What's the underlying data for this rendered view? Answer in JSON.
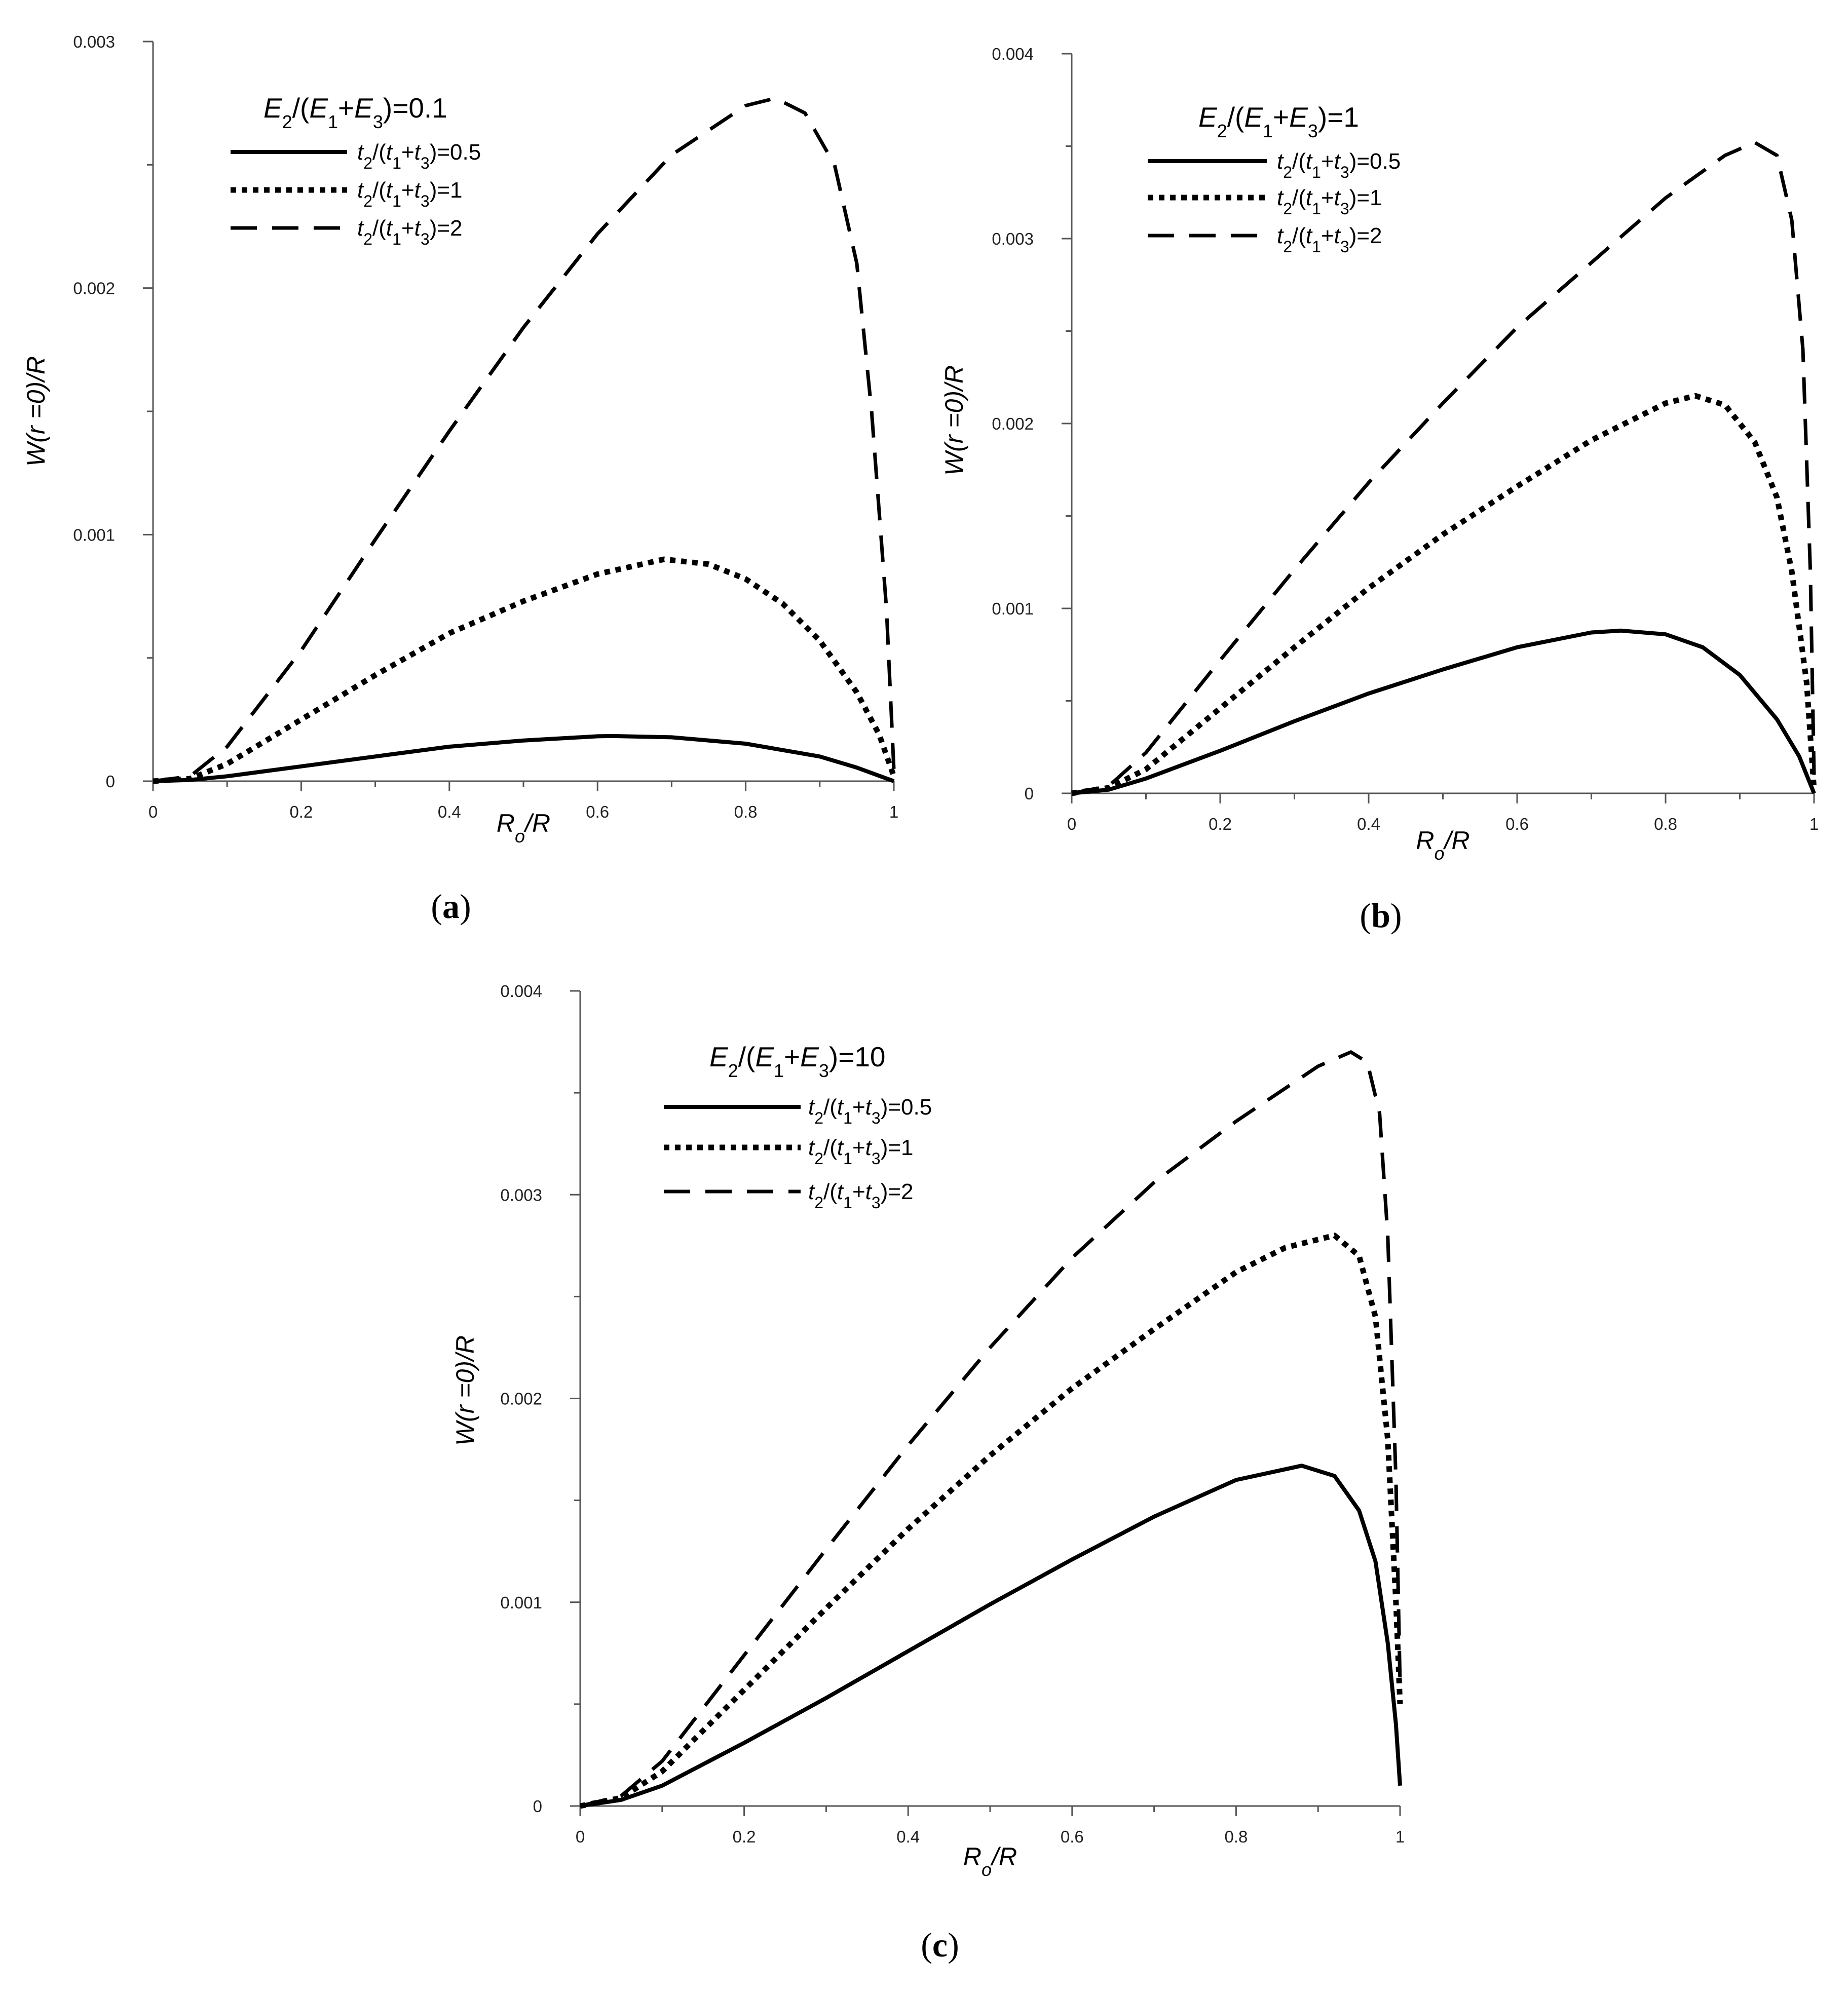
{
  "chart_data": [
    {
      "type": "line",
      "panel_label": "(a)",
      "legend_title": "E2/(E1+E3)=0.1",
      "legend_title_parts": {
        "pre": "E",
        "sub1": "2",
        "mid1": "/(E",
        "sub2": "1",
        "mid2": "+E",
        "sub3": "3",
        "post": ")=0.1"
      },
      "xlabel": "Ro/R",
      "ylabel": "W(r =0)/R",
      "xlim": [
        0,
        1
      ],
      "ylim": [
        0,
        0.003
      ],
      "xticks": [
        "0",
        "0.2",
        "0.4",
        "0.6",
        "0.8",
        "1"
      ],
      "yticks": [
        "0",
        "0.001",
        "0.002",
        "0.003"
      ],
      "series": [
        {
          "name": "t2/(t1+t3)=0.5",
          "label_value": "0.5",
          "style": "solid",
          "x": [
            0,
            0.05,
            0.1,
            0.2,
            0.3,
            0.4,
            0.5,
            0.6,
            0.62,
            0.7,
            0.8,
            0.9,
            0.95,
            1.0
          ],
          "y": [
            0,
            5e-06,
            2e-05,
            6e-05,
            0.0001,
            0.00014,
            0.000165,
            0.000182,
            0.000183,
            0.000178,
            0.000152,
            0.0001,
            5.5e-05,
            0
          ]
        },
        {
          "name": "t2/(t1+t3)=1",
          "label_value": "1",
          "style": "dotted",
          "x": [
            0,
            0.05,
            0.1,
            0.2,
            0.3,
            0.4,
            0.5,
            0.6,
            0.69,
            0.75,
            0.8,
            0.85,
            0.9,
            0.95,
            0.98,
            1.0
          ],
          "y": [
            0,
            1e-05,
            7e-05,
            0.00025,
            0.00043,
            0.0006,
            0.00073,
            0.00084,
            0.0009,
            0.00088,
            0.00082,
            0.00072,
            0.00057,
            0.00036,
            0.00019,
            2e-05
          ]
        },
        {
          "name": "t2/(t1+t3)=2",
          "label_value": "2",
          "style": "dashed",
          "x": [
            0,
            0.05,
            0.1,
            0.2,
            0.3,
            0.4,
            0.5,
            0.6,
            0.7,
            0.8,
            0.84,
            0.88,
            0.92,
            0.95,
            0.97,
            0.99,
            1.0
          ],
          "y": [
            0,
            2e-05,
            0.00014,
            0.00053,
            0.00098,
            0.00142,
            0.00184,
            0.00222,
            0.00254,
            0.00274,
            0.00277,
            0.00271,
            0.0025,
            0.0021,
            0.0015,
            0.0007,
            5e-05
          ]
        }
      ]
    },
    {
      "type": "line",
      "panel_label": "(b)",
      "legend_title": "E2/(E1+E3)=1",
      "legend_title_parts": {
        "pre": "E",
        "sub1": "2",
        "mid1": "/(E",
        "sub2": "1",
        "mid2": "+E",
        "sub3": "3",
        "post": ")=1"
      },
      "xlabel": "Ro/R",
      "ylabel": "W(r =0)/R",
      "xlim": [
        0,
        1
      ],
      "ylim": [
        0,
        0.004
      ],
      "xticks": [
        "0",
        "0.2",
        "0.4",
        "0.6",
        "0.8",
        "1"
      ],
      "yticks": [
        "0",
        "0.001",
        "0.002",
        "0.003",
        "0.004"
      ],
      "series": [
        {
          "name": "t2/(t1+t3)=0.5",
          "label_value": "0.5",
          "style": "solid",
          "x": [
            0,
            0.05,
            0.1,
            0.2,
            0.3,
            0.4,
            0.5,
            0.6,
            0.7,
            0.74,
            0.8,
            0.85,
            0.9,
            0.95,
            0.98,
            1.0
          ],
          "y": [
            0,
            2e-05,
            8e-05,
            0.00023,
            0.00039,
            0.00054,
            0.00067,
            0.00079,
            0.00087,
            0.00088,
            0.00086,
            0.00079,
            0.00064,
            0.0004,
            0.0002,
            0
          ]
        },
        {
          "name": "t2/(t1+t3)=1",
          "label_value": "1",
          "style": "dotted",
          "x": [
            0,
            0.05,
            0.1,
            0.2,
            0.3,
            0.4,
            0.5,
            0.6,
            0.7,
            0.8,
            0.84,
            0.88,
            0.92,
            0.95,
            0.97,
            0.99,
            1.0
          ],
          "y": [
            0,
            3e-05,
            0.00013,
            0.00046,
            0.00079,
            0.00111,
            0.0014,
            0.00166,
            0.00191,
            0.00211,
            0.00215,
            0.0021,
            0.0019,
            0.0016,
            0.0012,
            0.0006,
            2e-05
          ]
        },
        {
          "name": "t2/(t1+t3)=2",
          "label_value": "2",
          "style": "dashed",
          "x": [
            0,
            0.05,
            0.1,
            0.2,
            0.3,
            0.4,
            0.5,
            0.6,
            0.7,
            0.8,
            0.88,
            0.92,
            0.95,
            0.97,
            0.985,
            0.995,
            1.0
          ],
          "y": [
            0,
            4e-05,
            0.00022,
            0.00072,
            0.00121,
            0.00168,
            0.00211,
            0.00252,
            0.00287,
            0.00322,
            0.00345,
            0.00352,
            0.00345,
            0.0031,
            0.0024,
            0.0012,
            0.0001
          ]
        }
      ]
    },
    {
      "type": "line",
      "panel_label": "(c)",
      "legend_title": "E2/(E1+E3)=10",
      "legend_title_parts": {
        "pre": "E",
        "sub1": "2",
        "mid1": "/(E",
        "sub2": "1",
        "mid2": "+E",
        "sub3": "3",
        "post": ")=10"
      },
      "xlabel": "Ro/R",
      "ylabel": "W(r =0)/R",
      "xlim": [
        0,
        1
      ],
      "ylim": [
        0,
        0.004
      ],
      "xticks": [
        "0",
        "0.2",
        "0.4",
        "0.6",
        "0.8",
        "1"
      ],
      "yticks": [
        "0",
        "0.001",
        "0.002",
        "0.003",
        "0.004"
      ],
      "series": [
        {
          "name": "t2/(t1+t3)=0.5",
          "label_value": "0.5",
          "style": "solid",
          "x": [
            0,
            0.05,
            0.1,
            0.2,
            0.3,
            0.4,
            0.5,
            0.6,
            0.7,
            0.8,
            0.88,
            0.92,
            0.95,
            0.97,
            0.985,
            0.995,
            1.0
          ],
          "y": [
            0,
            3e-05,
            0.0001,
            0.00031,
            0.00053,
            0.00076,
            0.00099,
            0.00121,
            0.00142,
            0.0016,
            0.00167,
            0.00162,
            0.00145,
            0.0012,
            0.0008,
            0.0004,
            0.0001
          ]
        },
        {
          "name": "t2/(t1+t3)=1",
          "label_value": "1",
          "style": "dotted",
          "x": [
            0,
            0.05,
            0.1,
            0.2,
            0.3,
            0.4,
            0.5,
            0.6,
            0.7,
            0.8,
            0.86,
            0.92,
            0.95,
            0.97,
            0.985,
            0.995,
            1.0
          ],
          "y": [
            0,
            4e-05,
            0.00017,
            0.00057,
            0.00097,
            0.00136,
            0.00172,
            0.00205,
            0.00234,
            0.00262,
            0.00274,
            0.0028,
            0.0027,
            0.0024,
            0.0018,
            0.001,
            0.0005
          ]
        },
        {
          "name": "t2/(t1+t3)=2",
          "label_value": "2",
          "style": "dashed",
          "x": [
            0,
            0.05,
            0.1,
            0.2,
            0.3,
            0.4,
            0.5,
            0.6,
            0.7,
            0.8,
            0.9,
            0.94,
            0.96,
            0.975,
            0.985,
            0.995,
            1.0
          ],
          "y": [
            0,
            5e-05,
            0.00022,
            0.00074,
            0.00126,
            0.00177,
            0.00225,
            0.00269,
            0.00306,
            0.00336,
            0.00363,
            0.0037,
            0.00365,
            0.0034,
            0.0028,
            0.0016,
            0.0006
          ]
        }
      ]
    }
  ]
}
